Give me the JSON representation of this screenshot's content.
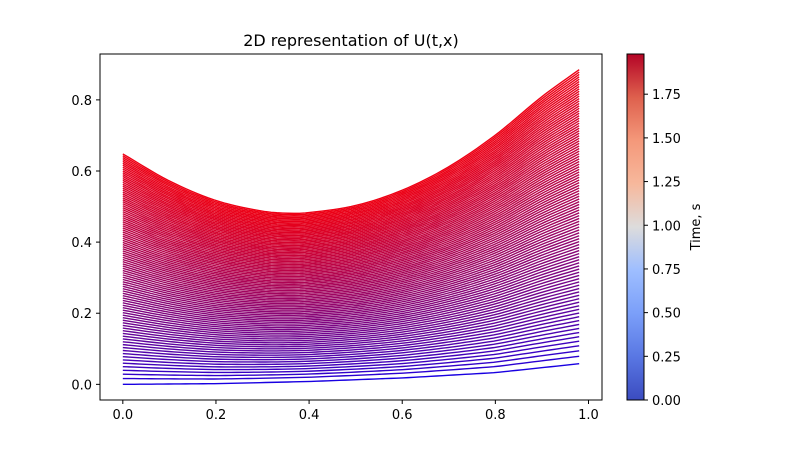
{
  "chart_data": {
    "type": "line",
    "title": "2D representation of U(t,x)",
    "xlabel": "",
    "ylabel": "",
    "xlim": [
      -0.049,
      1.029
    ],
    "ylim": [
      -0.044,
      0.929
    ],
    "x_ticks": [
      "0.0",
      "0.2",
      "0.4",
      "0.6",
      "0.8",
      "1.0"
    ],
    "x_tick_values": [
      0.0,
      0.2,
      0.4,
      0.6,
      0.8,
      1.0
    ],
    "y_ticks": [
      "0.0",
      "0.2",
      "0.4",
      "0.6",
      "0.8"
    ],
    "y_tick_values": [
      0.0,
      0.2,
      0.4,
      0.6,
      0.8
    ],
    "x_range": [
      0.0,
      0.98
    ],
    "time_range": [
      0.0,
      1.98
    ],
    "curve_count": 100,
    "final_curve": {
      "x": [
        0.0,
        0.1,
        0.2,
        0.3,
        0.36,
        0.4,
        0.5,
        0.6,
        0.7,
        0.8,
        0.9,
        0.98
      ],
      "y": [
        0.648,
        0.572,
        0.517,
        0.487,
        0.481,
        0.483,
        0.503,
        0.546,
        0.612,
        0.701,
        0.809,
        0.885
      ]
    },
    "initial_curve": {
      "x": [
        0.0,
        0.2,
        0.4,
        0.6,
        0.8,
        0.98
      ],
      "y": [
        0.0,
        0.002,
        0.008,
        0.018,
        0.033,
        0.058
      ]
    },
    "colormap": "coolwarm",
    "colorbar": {
      "label": "Time, s",
      "range": [
        0.0,
        1.98
      ],
      "ticks": [
        "0.00",
        "0.25",
        "0.50",
        "0.75",
        "1.00",
        "1.25",
        "1.50",
        "1.75"
      ],
      "tick_values": [
        0.0,
        0.25,
        0.5,
        0.75,
        1.0,
        1.25,
        1.5,
        1.75
      ]
    },
    "grid": false,
    "legend": "none"
  }
}
